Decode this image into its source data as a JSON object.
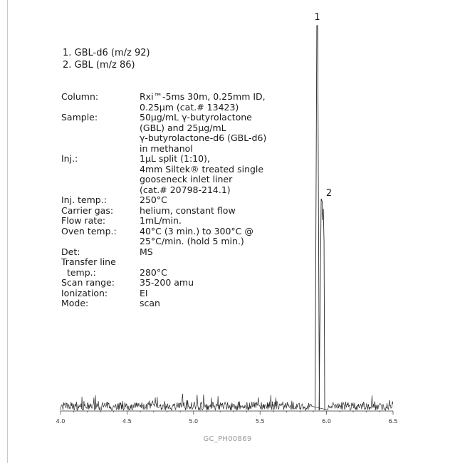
{
  "chart_data": {
    "type": "line",
    "title": "",
    "xlabel": "",
    "ylabel": "",
    "xlim": [
      4.0,
      6.5
    ],
    "x_ticks": [
      "4.0",
      "4.5",
      "5.0",
      "5.5",
      "6.0",
      "6.5"
    ],
    "grid": false,
    "peaks": [
      {
        "label": "1",
        "x": 5.93,
        "height": 1.0
      },
      {
        "label": "2",
        "x": 5.965,
        "height": 0.55
      }
    ],
    "series": [
      {
        "values": [
          [
            4.0,
            0.02
          ],
          [
            4.1,
            0.03
          ],
          [
            4.2,
            0.04
          ],
          [
            4.3,
            0.03
          ],
          [
            4.4,
            0.04
          ],
          [
            4.5,
            0.03
          ],
          [
            4.6,
            0.05
          ],
          [
            4.7,
            0.03
          ],
          [
            4.8,
            0.03
          ],
          [
            4.9,
            0.04
          ],
          [
            5.0,
            0.03
          ],
          [
            5.1,
            0.03
          ],
          [
            5.2,
            0.05
          ],
          [
            5.3,
            0.04
          ],
          [
            5.4,
            0.03
          ],
          [
            5.5,
            0.04
          ],
          [
            5.6,
            0.05
          ],
          [
            5.7,
            0.03
          ],
          [
            5.8,
            0.04
          ],
          [
            5.9,
            0.05
          ],
          [
            5.92,
            0.6
          ],
          [
            5.93,
            1.0
          ],
          [
            5.945,
            0.2
          ],
          [
            5.965,
            0.55
          ],
          [
            5.98,
            0.08
          ],
          [
            6.0,
            0.04
          ],
          [
            6.1,
            0.03
          ],
          [
            6.2,
            0.03
          ],
          [
            6.3,
            0.03
          ],
          [
            6.4,
            0.02
          ],
          [
            6.5,
            0.02
          ]
        ]
      }
    ]
  },
  "legend": {
    "items": [
      "1. GBL-d6 (m/z 92)",
      "2. GBL (m/z 86)"
    ]
  },
  "conditions": [
    {
      "label": "Column:",
      "value": [
        "Rxi™-5ms 30m, 0.25mm ID,",
        "0.25µm (cat.# 13423)"
      ]
    },
    {
      "label": "Sample:",
      "value": [
        "50µg/mL γ-butyrolactone",
        "(GBL) and 25µg/mL",
        "γ-butyrolactone-d6 (GBL-d6)",
        "in methanol"
      ]
    },
    {
      "label": "Inj.:",
      "value": [
        "1µL split (1:10),",
        "4mm Siltek® treated single",
        "gooseneck inlet liner",
        "(cat.# 20798-214.1)"
      ]
    },
    {
      "label": "Inj. temp.:",
      "value": [
        "250°C"
      ]
    },
    {
      "label": "Carrier gas:",
      "value": [
        "helium, constant flow"
      ]
    },
    {
      "label": "Flow rate:",
      "value": [
        "1mL/min."
      ]
    },
    {
      "label": "Oven temp.:",
      "value": [
        "40°C (3 min.) to 300°C @",
        "25°C/min. (hold 5 min.)"
      ]
    },
    {
      "label": "Det:",
      "value": [
        "MS"
      ]
    },
    {
      "label": "Transfer line\n  temp.:",
      "value": [
        "",
        "280°C"
      ]
    },
    {
      "label": "Scan range:",
      "value": [
        "35-200 amu"
      ]
    },
    {
      "label": "Ionization:",
      "value": [
        "EI"
      ]
    },
    {
      "label": "Mode:",
      "value": [
        "scan"
      ]
    }
  ],
  "image_id": "GC_PH00869"
}
